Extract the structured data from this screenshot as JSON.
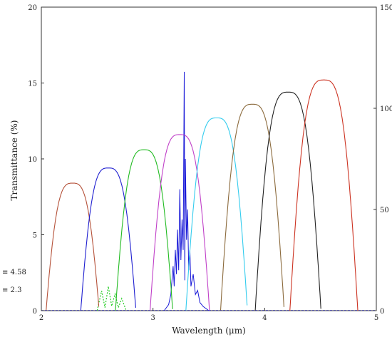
{
  "chart_data": {
    "type": "line",
    "xlabel": "Wavelength (μm)",
    "ylabel": "Transmittance (%)",
    "xlim": [
      2,
      5
    ],
    "ylim": [
      0,
      20
    ],
    "y2lim": [
      0,
      150
    ],
    "grid": false,
    "x_ticks": [
      2,
      3,
      4,
      5
    ],
    "y_ticks": [
      0,
      5,
      10,
      15,
      20
    ],
    "y2_ticks": [
      0,
      50,
      100,
      150
    ],
    "x_tick_labels": [
      "2",
      "3",
      "4",
      "5"
    ],
    "y_tick_labels": [
      "0",
      "5",
      "10",
      "15",
      "20"
    ],
    "y2_tick_labels": [
      "0",
      "50",
      "100",
      "150"
    ],
    "side_labels": [
      "≡ 4.58",
      "≡ 2.3"
    ],
    "series": [
      {
        "color": "#b5523a",
        "center": 2.28,
        "fwhm": 0.25,
        "peak": 8.4
      },
      {
        "color": "#1f1fd0",
        "center": 2.6,
        "fwhm": 0.26,
        "peak": 9.4
      },
      {
        "color": "#22bb22",
        "center": 2.92,
        "fwhm": 0.27,
        "peak": 10.6
      },
      {
        "color": "#c040c8",
        "center": 3.24,
        "fwhm": 0.28,
        "peak": 11.6
      },
      {
        "color": "#33ccee",
        "center": 3.57,
        "fwhm": 0.29,
        "peak": 12.7
      },
      {
        "color": "#8b6a3c",
        "center": 3.89,
        "fwhm": 0.3,
        "peak": 13.6
      },
      {
        "color": "#222222",
        "center": 4.21,
        "fwhm": 0.31,
        "peak": 14.4
      },
      {
        "color": "#cc3322",
        "center": 4.53,
        "fwhm": 0.32,
        "peak": 15.2
      }
    ],
    "green_dotted_spectrum": {
      "color": "#22cc22",
      "points": [
        [
          2.5,
          0
        ],
        [
          2.54,
          1.3
        ],
        [
          2.57,
          0.2
        ],
        [
          2.6,
          1.6
        ],
        [
          2.63,
          0.3
        ],
        [
          2.66,
          1.1
        ],
        [
          2.69,
          0.2
        ],
        [
          2.72,
          0.8
        ],
        [
          2.76,
          0
        ]
      ]
    },
    "blue_absorption_spectrum": {
      "color": "#1a1ad8",
      "axis": "secondary",
      "points": [
        [
          3.1,
          0
        ],
        [
          3.14,
          3
        ],
        [
          3.16,
          8
        ],
        [
          3.18,
          22
        ],
        [
          3.19,
          12
        ],
        [
          3.2,
          30
        ],
        [
          3.21,
          18
        ],
        [
          3.22,
          40
        ],
        [
          3.23,
          20
        ],
        [
          3.24,
          60
        ],
        [
          3.25,
          25
        ],
        [
          3.26,
          45
        ],
        [
          3.27,
          30
        ],
        [
          3.28,
          118
        ],
        [
          3.285,
          15
        ],
        [
          3.29,
          75
        ],
        [
          3.3,
          35
        ],
        [
          3.31,
          50
        ],
        [
          3.32,
          20
        ],
        [
          3.33,
          30
        ],
        [
          3.34,
          12
        ],
        [
          3.36,
          18
        ],
        [
          3.38,
          8
        ],
        [
          3.4,
          10
        ],
        [
          3.42,
          4
        ],
        [
          3.45,
          2
        ],
        [
          3.5,
          0
        ]
      ]
    }
  }
}
